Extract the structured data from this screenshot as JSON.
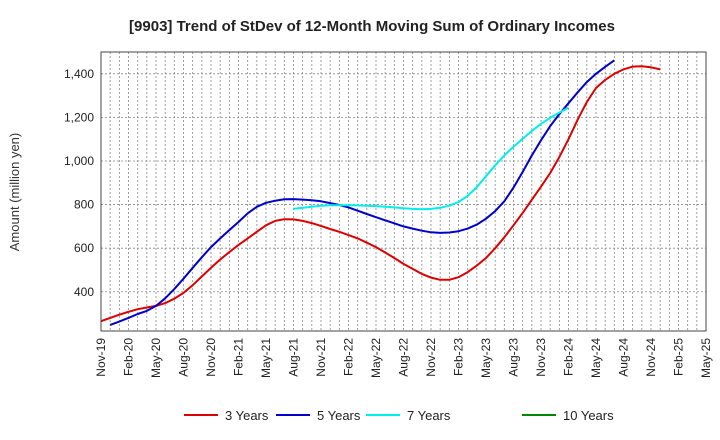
{
  "chart_data": {
    "type": "line",
    "title": "[9903]  Trend of StDev of 12-Month Moving Sum of Ordinary Incomes",
    "xlabel": "",
    "ylabel": "Amount (million yen)",
    "ylim": [
      220,
      1500
    ],
    "yticks": [
      400,
      600,
      800,
      1000,
      1200,
      1400
    ],
    "ytick_labels": [
      "400",
      "600",
      "800",
      "1,000",
      "1,200",
      "1,400"
    ],
    "grid": true,
    "legend_position": "bottom",
    "x_tick_labels": [
      "Nov-19",
      "Feb-20",
      "May-20",
      "Aug-20",
      "Nov-20",
      "Feb-21",
      "May-21",
      "Aug-21",
      "Nov-21",
      "Feb-22",
      "May-22",
      "Aug-22",
      "Nov-22",
      "Feb-23",
      "May-23",
      "Aug-23",
      "Nov-23",
      "Feb-24",
      "May-24",
      "Aug-24",
      "Nov-24",
      "Feb-25",
      "May-25"
    ],
    "series": [
      {
        "name": "3 Years",
        "color": "#dd0000",
        "start_index": 0,
        "values": [
          265,
          280,
          295,
          308,
          320,
          328,
          335,
          348,
          368,
          395,
          430,
          470,
          510,
          548,
          582,
          615,
          645,
          675,
          705,
          725,
          733,
          732,
          725,
          715,
          702,
          688,
          675,
          660,
          645,
          625,
          605,
          580,
          555,
          528,
          505,
          482,
          465,
          455,
          455,
          467,
          490,
          520,
          555,
          600,
          650,
          705,
          762,
          822,
          882,
          945,
          1018,
          1100,
          1190,
          1270,
          1335,
          1372,
          1400,
          1420,
          1433,
          1435,
          1430,
          1420
        ]
      },
      {
        "name": "5 Years",
        "color": "#0000cc",
        "start_index": 1,
        "values": [
          248,
          263,
          280,
          298,
          312,
          335,
          370,
          412,
          460,
          510,
          558,
          605,
          645,
          683,
          720,
          760,
          790,
          808,
          818,
          824,
          825,
          823,
          820,
          815,
          807,
          798,
          787,
          772,
          757,
          742,
          728,
          714,
          700,
          690,
          680,
          673,
          670,
          672,
          678,
          690,
          708,
          735,
          770,
          815,
          878,
          950,
          1025,
          1095,
          1160,
          1215,
          1265,
          1315,
          1362,
          1400,
          1432,
          1462
        ]
      },
      {
        "name": "7 Years",
        "color": "#00eeee",
        "start_index": 21,
        "values": [
          780,
          785,
          790,
          795,
          797,
          797,
          797,
          796,
          795,
          793,
          790,
          787,
          783,
          780,
          779,
          780,
          785,
          795,
          812,
          840,
          880,
          930,
          980,
          1025,
          1065,
          1102,
          1138,
          1170,
          1198,
          1222,
          1245
        ]
      },
      {
        "name": "10 Years",
        "color": "#008800",
        "start_index": 0,
        "values": []
      }
    ]
  }
}
